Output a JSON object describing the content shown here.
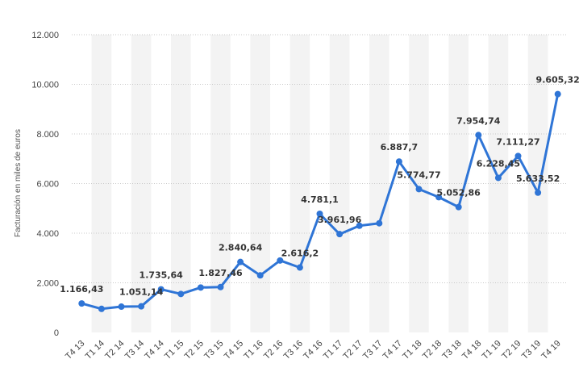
{
  "chart_data": {
    "type": "line",
    "ylabel": "Facturación en miles de euros",
    "ylim": [
      0,
      12000
    ],
    "yticks": [
      0,
      2000,
      4000,
      6000,
      8000,
      10000,
      12000
    ],
    "ytick_labels": [
      "0",
      "2.000",
      "4.000",
      "6.000",
      "8.000",
      "10.000",
      "12.000"
    ],
    "grid": "horizontal dotted",
    "colors": {
      "line": "#2f75d6",
      "band": "#f3f3f3",
      "grid": "#c8c8c8"
    },
    "categories": [
      "T4 13",
      "T1 14",
      "T2 14",
      "T3 14",
      "T4 14",
      "T1 15",
      "T2 15",
      "T3 15",
      "T4 15",
      "T1 16",
      "T2 16",
      "T3 16",
      "T4 16",
      "T1 17",
      "T2 17",
      "T3 17",
      "T4 17",
      "T1 18",
      "T2 18",
      "T3 18",
      "T4 18",
      "T1 19",
      "T2 19",
      "T3 19",
      "T4 19"
    ],
    "values": [
      1166.43,
      950,
      1040,
      1051.14,
      1735.64,
      1550,
      1810,
      1827.46,
      2840.64,
      2300,
      2900,
      2616.2,
      4781.1,
      3961.96,
      4300,
      4400,
      6887.7,
      5774.77,
      5450,
      5052.86,
      7954.74,
      6228.45,
      7111.27,
      5633.52,
      9605.32
    ],
    "data_labels": [
      "1.166,43",
      "",
      "",
      "1.051,14",
      "1.735,64",
      "",
      "",
      "1.827,46",
      "2.840,64",
      "",
      "",
      "2.616,2",
      "4.781,1",
      "3.961,96",
      "",
      "",
      "6.887,7",
      "5.774,77",
      "",
      "5.052,86",
      "7.954,74",
      "6.228,45",
      "7.111,27",
      "5.633,52",
      "9.605,32"
    ]
  }
}
